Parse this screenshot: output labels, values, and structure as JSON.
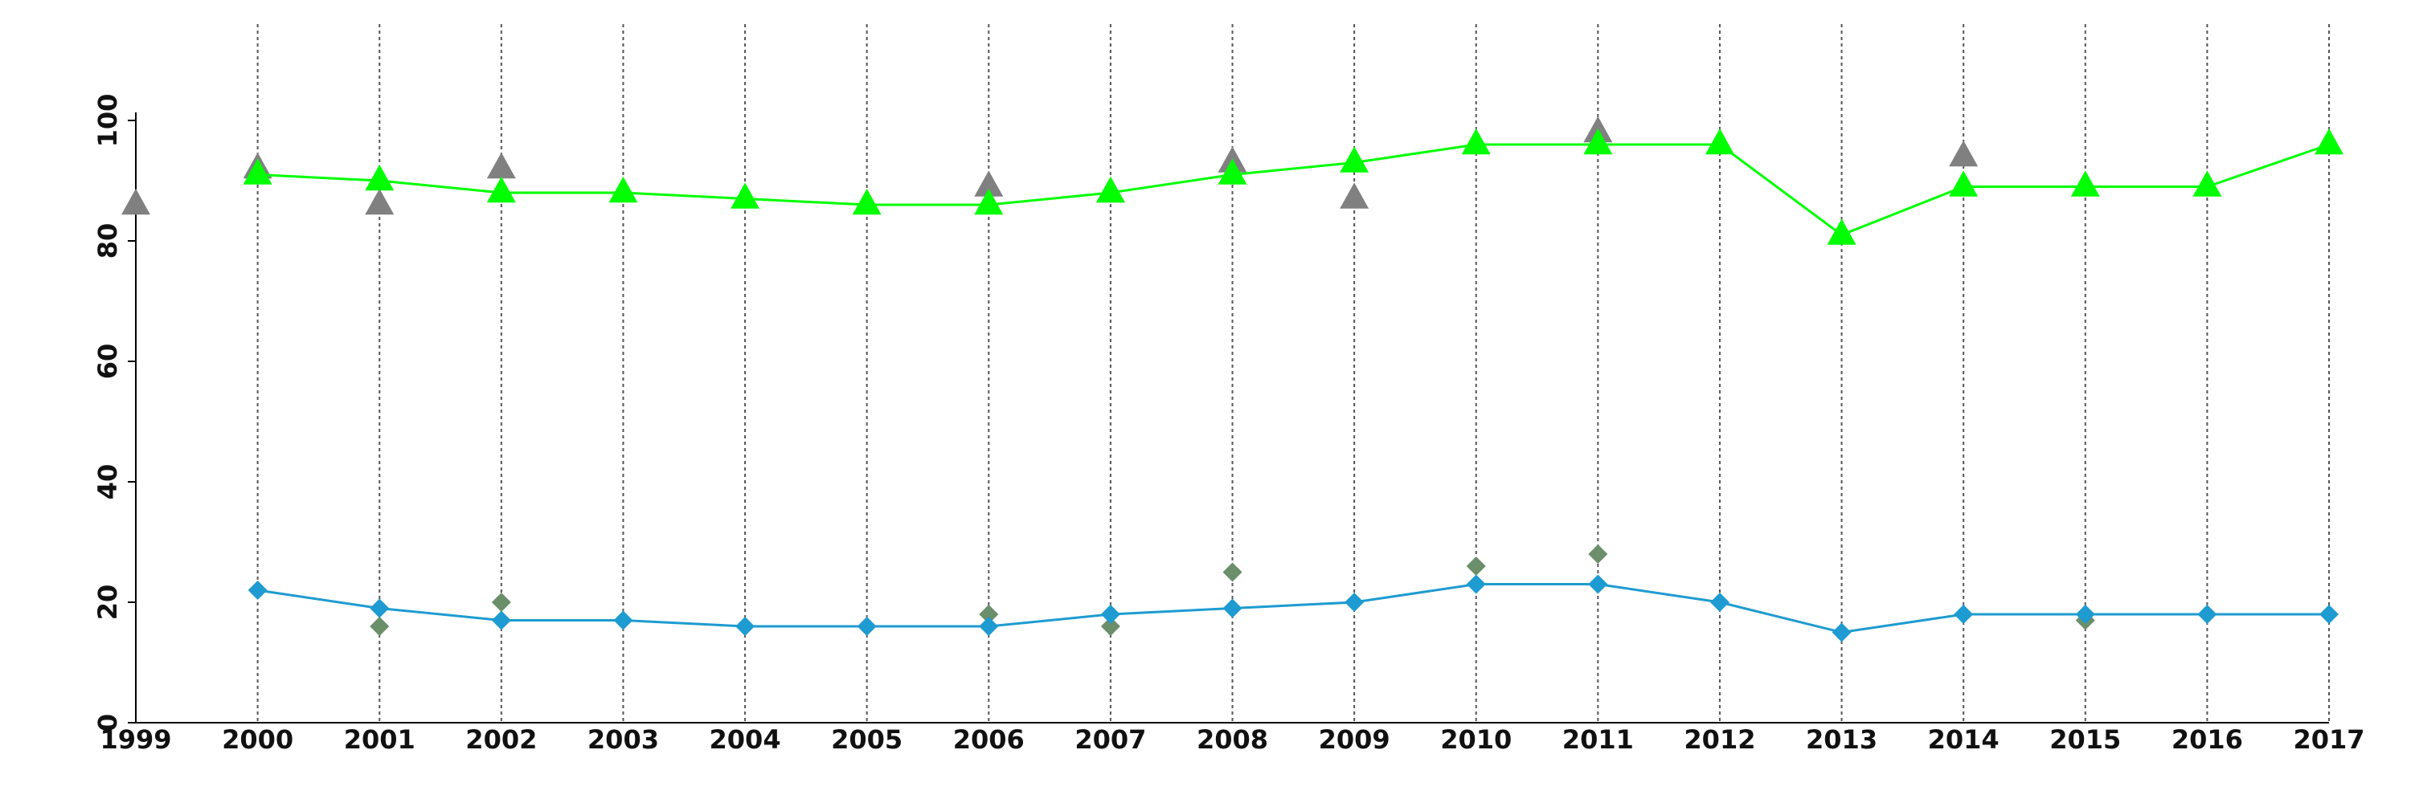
{
  "chart_data": {
    "type": "line",
    "title": "",
    "xlabel": "",
    "ylabel": "",
    "xlim": [
      1999,
      2017
    ],
    "ylim": [
      0,
      100
    ],
    "x_ticks": [
      "1999",
      "2000",
      "2001",
      "2002",
      "2003",
      "2004",
      "2005",
      "2006",
      "2007",
      "2008",
      "2009",
      "2010",
      "2011",
      "2012",
      "2013",
      "2014",
      "2015",
      "2016",
      "2017"
    ],
    "y_ticks": [
      "0",
      "20",
      "40",
      "60",
      "80",
      "100"
    ],
    "grid": "vertical dotted lines at each year",
    "legend": "none",
    "series": [
      {
        "style": "scatter",
        "marker": "triangle",
        "color": "#808080",
        "x": [
          1999,
          2000,
          2001,
          2002,
          2006,
          2007,
          2008,
          2009,
          2011,
          2014
        ],
        "values": [
          86,
          92,
          86,
          92,
          89,
          88,
          93,
          87,
          98,
          94
        ]
      },
      {
        "style": "line",
        "marker": "triangle",
        "color": "#00ff00",
        "x": [
          2000,
          2001,
          2002,
          2003,
          2004,
          2005,
          2006,
          2007,
          2008,
          2009,
          2010,
          2011,
          2012,
          2013,
          2014,
          2015,
          2016,
          2017
        ],
        "values": [
          91,
          90,
          88,
          88,
          87,
          86,
          86,
          88,
          91,
          93,
          96,
          96,
          96,
          81,
          89,
          89,
          89,
          96
        ]
      },
      {
        "style": "scatter",
        "marker": "diamond",
        "color": "#6b8e6b",
        "x": [
          2001,
          2002,
          2006,
          2007,
          2008,
          2010,
          2011,
          2015
        ],
        "values": [
          16,
          20,
          18,
          16,
          25,
          26,
          28,
          17
        ]
      },
      {
        "style": "line",
        "marker": "diamond",
        "color": "#1e9bd0",
        "x": [
          2000,
          2001,
          2002,
          2003,
          2004,
          2005,
          2006,
          2007,
          2008,
          2009,
          2010,
          2011,
          2012,
          2013,
          2014,
          2015,
          2016,
          2017
        ],
        "values": [
          22,
          19,
          17,
          17,
          16,
          16,
          16,
          18,
          19,
          20,
          23,
          23,
          20,
          15,
          18,
          18,
          18,
          18
        ]
      }
    ]
  }
}
